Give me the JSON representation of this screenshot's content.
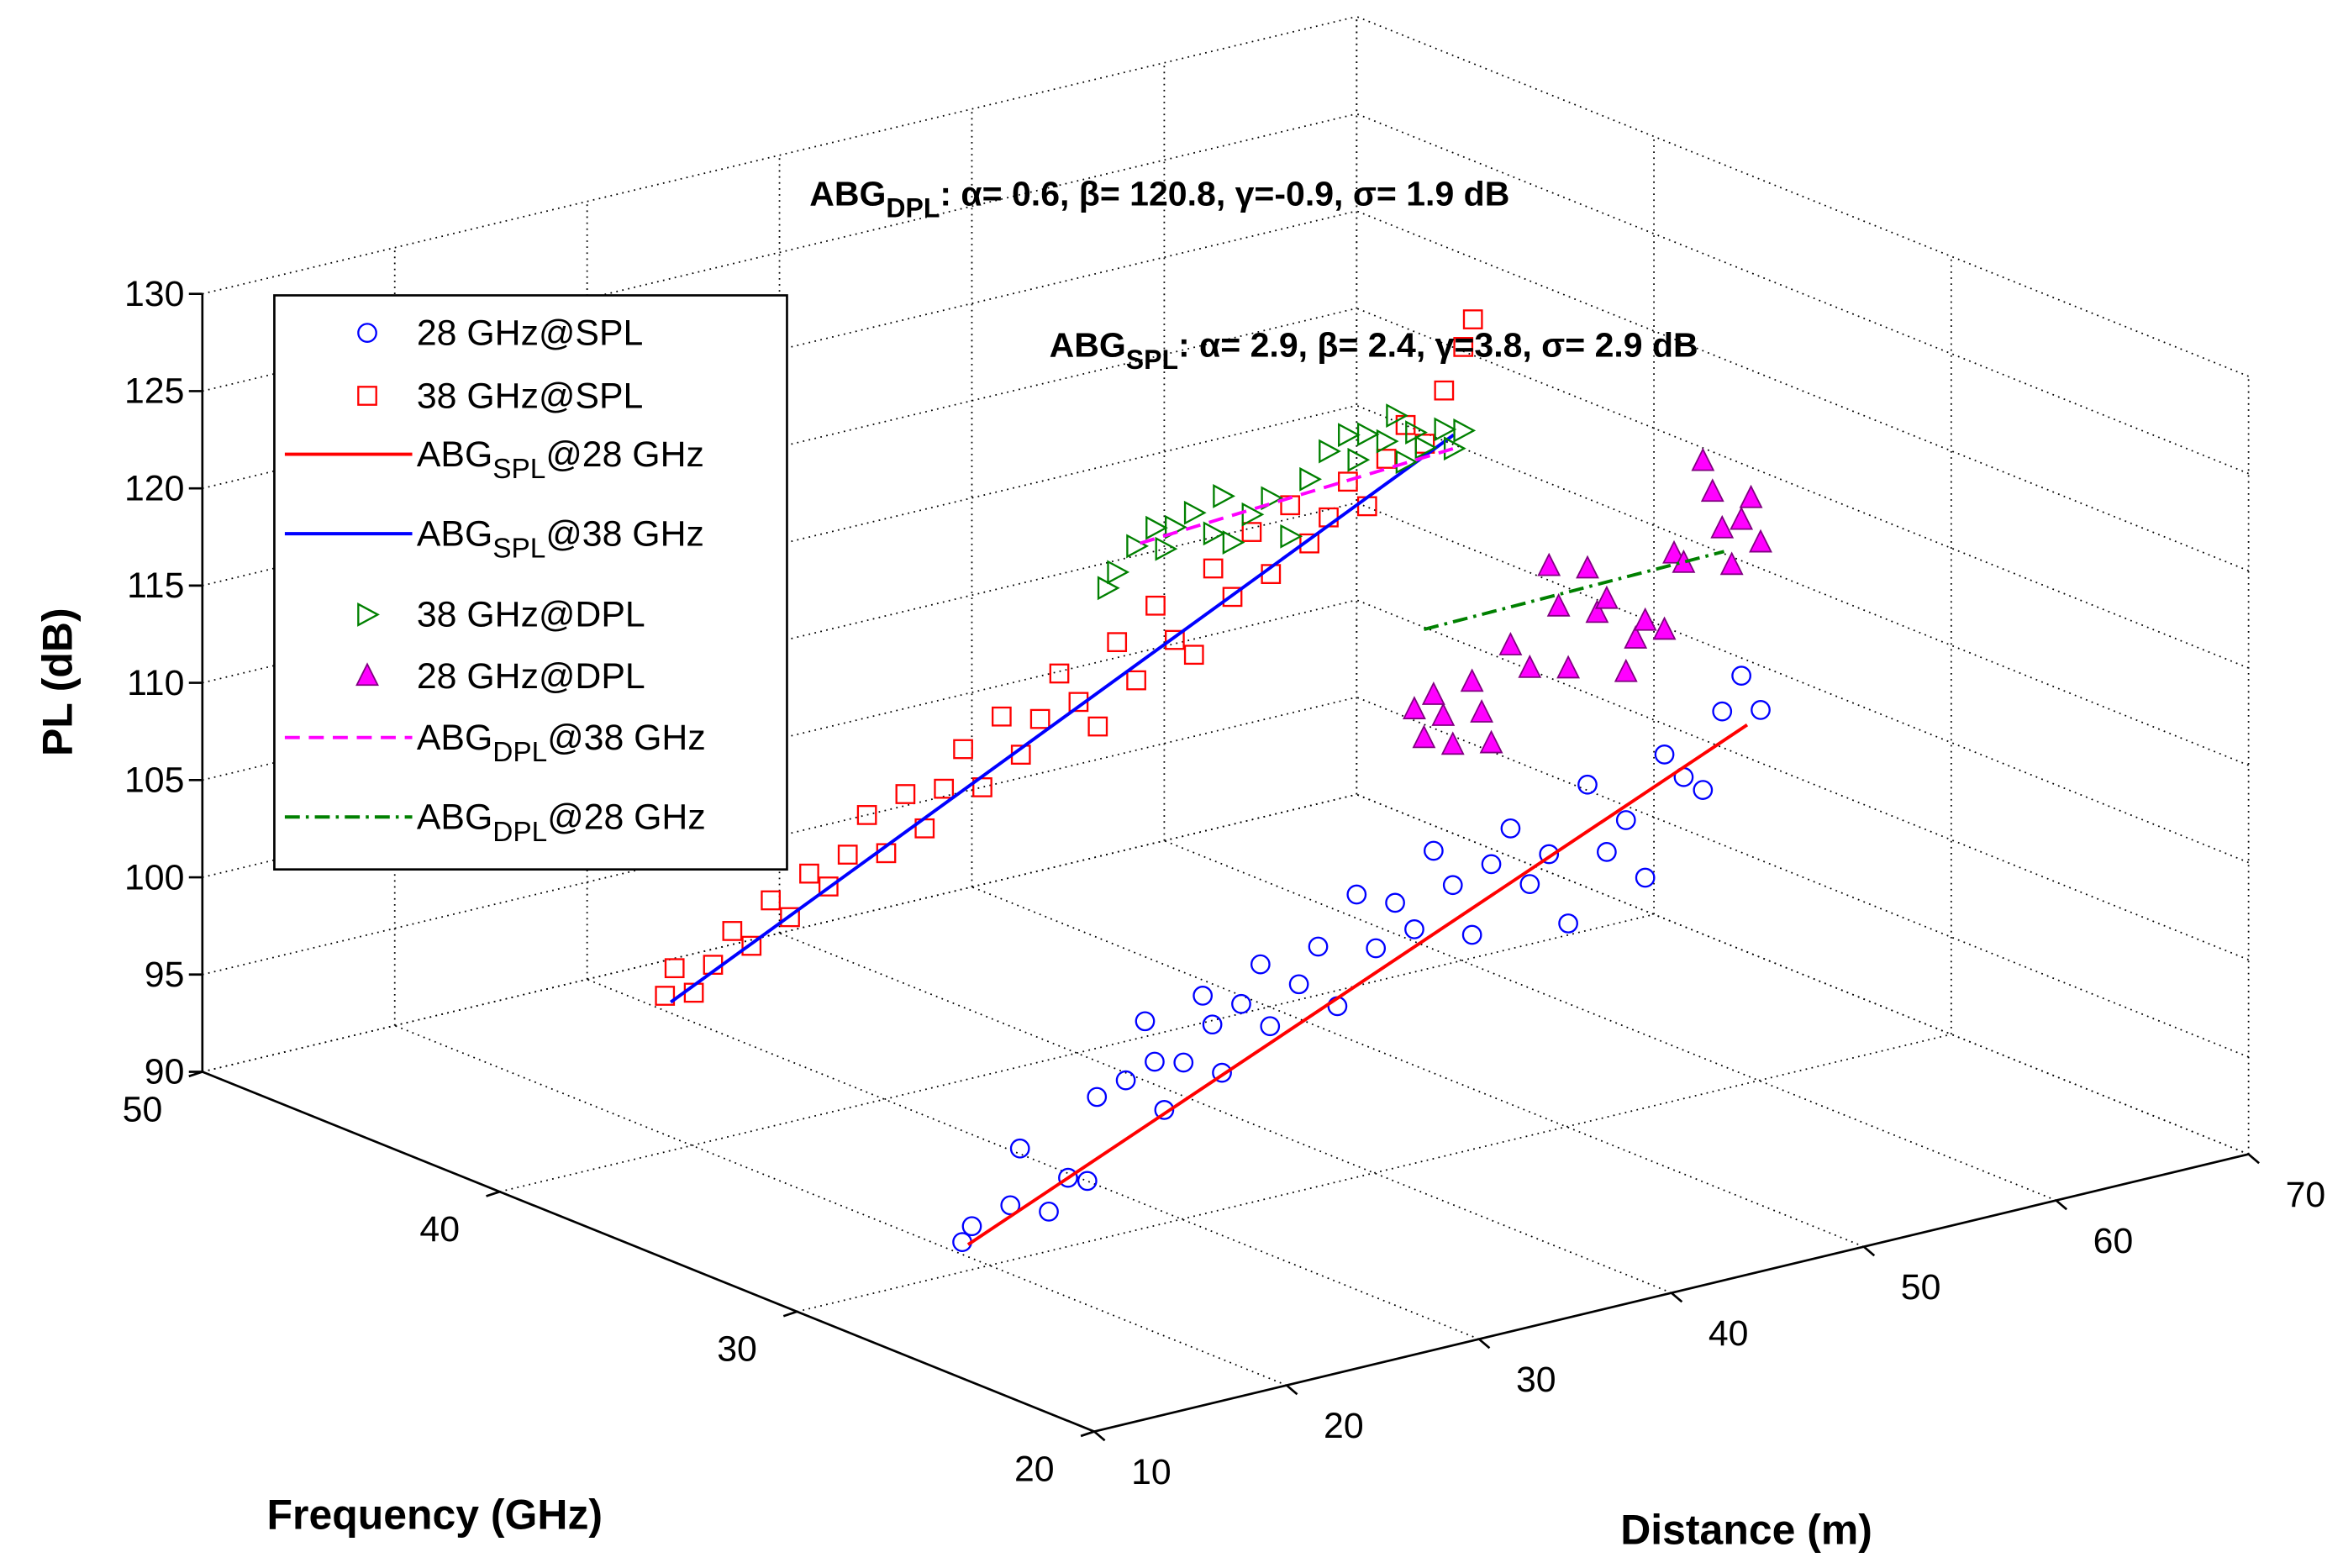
{
  "chart_data": {
    "type": "scatter3d",
    "xlabel": "Distance (m)",
    "ylabel": "Frequency (GHz)",
    "zlabel": "PL (dB)",
    "xlim": [
      10,
      70
    ],
    "xticks": [
      10,
      20,
      30,
      40,
      50,
      60,
      70
    ],
    "ylim": [
      20,
      50
    ],
    "yticks": [
      20,
      30,
      40,
      50
    ],
    "zlim": [
      90,
      130
    ],
    "zticks": [
      90,
      95,
      100,
      105,
      110,
      115,
      120,
      125,
      130
    ],
    "grid": true,
    "legend": "upper left",
    "annotations": [
      {
        "main": "ABG",
        "sub": "DPL",
        "rest": ": α= 0.6, β= 120.8, γ=-0.9, σ= 1.9 dB"
      },
      {
        "main": "ABG",
        "sub": "SPL",
        "rest": ": α= 2.9, β= 2.4, γ=3.8, σ= 2.9 dB"
      }
    ],
    "series": [
      {
        "name": "28 GHz@SPL",
        "marker": "circle",
        "color": "#0000ff",
        "frequency": 28,
        "x": [
          15.5,
          16,
          18,
          18.5,
          20,
          21,
          22,
          22.5,
          24,
          25,
          25.5,
          26,
          27,
          28,
          28.5,
          29,
          30,
          31,
          31.5,
          33,
          34,
          35,
          36,
          37,
          38,
          39,
          40,
          41,
          42,
          43,
          44,
          45,
          46,
          47,
          48,
          49,
          50,
          51,
          52,
          53,
          54,
          55,
          56,
          57
        ],
        "values": [
          93.5,
          94.2,
          94.8,
          97.6,
          94.0,
          95.5,
          95.1,
          99.3,
          99.8,
          102.6,
          100.4,
          97.8,
          100.0,
          103.2,
          101.6,
          99.0,
          102.3,
          104.1,
          100.8,
          102.6,
          104.3,
          101.0,
          106.5,
          103.5,
          105.6,
          104.0,
          107.8,
          105.8,
          103.0,
          106.4,
          108.0,
          104.9,
          106.2,
          102.4,
          109.3,
          105.6,
          107.0,
          103.8,
          109.9,
          108.5,
          107.6,
          111.4,
          113.0,
          111.0
        ]
      },
      {
        "name": "38 GHz@SPL",
        "marker": "square",
        "color": "#ff0000",
        "frequency": 38,
        "x": [
          15.5,
          16,
          17,
          18,
          19,
          20,
          21,
          22,
          23,
          24,
          25,
          26,
          27,
          28,
          29,
          30,
          31,
          32,
          33,
          34,
          35,
          36,
          37,
          38,
          39,
          40,
          41,
          42,
          43,
          44,
          45,
          46,
          47,
          48,
          49,
          50,
          51,
          52,
          53,
          54,
          55,
          56,
          57,
          57.5
        ],
        "values": [
          100.0,
          101.3,
          99.8,
          101.0,
          102.5,
          101.5,
          103.6,
          102.5,
          104.5,
          103.6,
          105.0,
          106.8,
          104.6,
          107.4,
          105.4,
          107.2,
          109.0,
          106.8,
          110.2,
          108.0,
          109.6,
          111.7,
          110.0,
          108.5,
          112.6,
          110.4,
          114.0,
          112.0,
          111.0,
          115.2,
          113.5,
          116.6,
          114.2,
          117.5,
          115.3,
          116.4,
          118.0,
          116.5,
          118.7,
          120.2,
          119.0,
          121.5,
          123.5,
          124.8
        ]
      },
      {
        "name": {
          "main": "ABG",
          "sub": "SPL",
          "rest": "@28 GHz"
        },
        "style": "solid",
        "color": "#ff0000",
        "frequency": 28,
        "x": [
          15.8,
          56.3
        ],
        "values": [
          93.3,
          110.4
        ]
      },
      {
        "name": {
          "main": "ABG",
          "sub": "SPL",
          "rest": "@38 GHz"
        },
        "style": "solid",
        "color": "#0000ff",
        "frequency": 38,
        "x": [
          15.8,
          56.5
        ],
        "values": [
          99.6,
          119.1
        ]
      },
      {
        "name": "38 GHz@DPL",
        "marker": "triangle-right",
        "color": "#008000",
        "frequency": 38,
        "x": [
          38.5,
          39,
          40,
          41,
          41.5,
          42,
          43,
          44,
          44.5,
          45,
          46,
          47,
          48,
          49,
          50,
          51,
          51.5,
          52,
          53,
          53.5,
          54,
          54.5,
          55,
          56,
          56.5,
          57
        ],
        "values": [
          115.5,
          116.2,
          117.3,
          118.0,
          116.8,
          117.8,
          118.3,
          117.0,
          118.8,
          116.3,
          117.5,
          118.1,
          115.9,
          118.6,
          119.8,
          120.4,
          119.0,
          120.2,
          119.6,
          120.8,
          118.3,
          119.7,
          118.8,
          119.5,
          118.4,
          119.2
        ]
      },
      {
        "name": "28 GHz@DPL",
        "marker": "triangle-up",
        "color": "#ff00ff",
        "frequency": 28,
        "x": [
          39,
          39.5,
          40,
          40.5,
          41,
          42,
          42.5,
          43,
          44,
          45,
          46,
          46.5,
          47,
          48,
          48.5,
          49,
          50,
          50.5,
          51,
          52,
          52.5,
          53,
          54,
          54.5,
          55,
          55.5,
          56,
          56.5,
          57
        ],
        "values": [
          115.3,
          113.7,
          115.8,
          114.6,
          113.0,
          116.0,
          114.3,
          112.6,
          117.4,
          116.0,
          121.0,
          118.8,
          115.5,
          120.4,
          118.0,
          118.6,
          114.6,
          116.2,
          117.0,
          116.3,
          120.1,
          119.5,
          124.5,
          122.8,
          120.8,
          118.8,
          121.0,
          122.0,
          119.6
        ]
      },
      {
        "name": {
          "main": "ABG",
          "sub": "DPL",
          "rest": "@38 GHz"
        },
        "style": "dashed",
        "color": "#ff00ff",
        "frequency": 38,
        "x": [
          40.2,
          56.5
        ],
        "values": [
          117.4,
          118.4
        ]
      },
      {
        "name": {
          "main": "ABG",
          "sub": "DPL",
          "rest": "@28 GHz"
        },
        "style": "dashdot",
        "color": "#008000",
        "frequency": 28,
        "x": [
          39.5,
          55.1
        ],
        "values": [
          119.3,
          119.6
        ]
      }
    ]
  }
}
